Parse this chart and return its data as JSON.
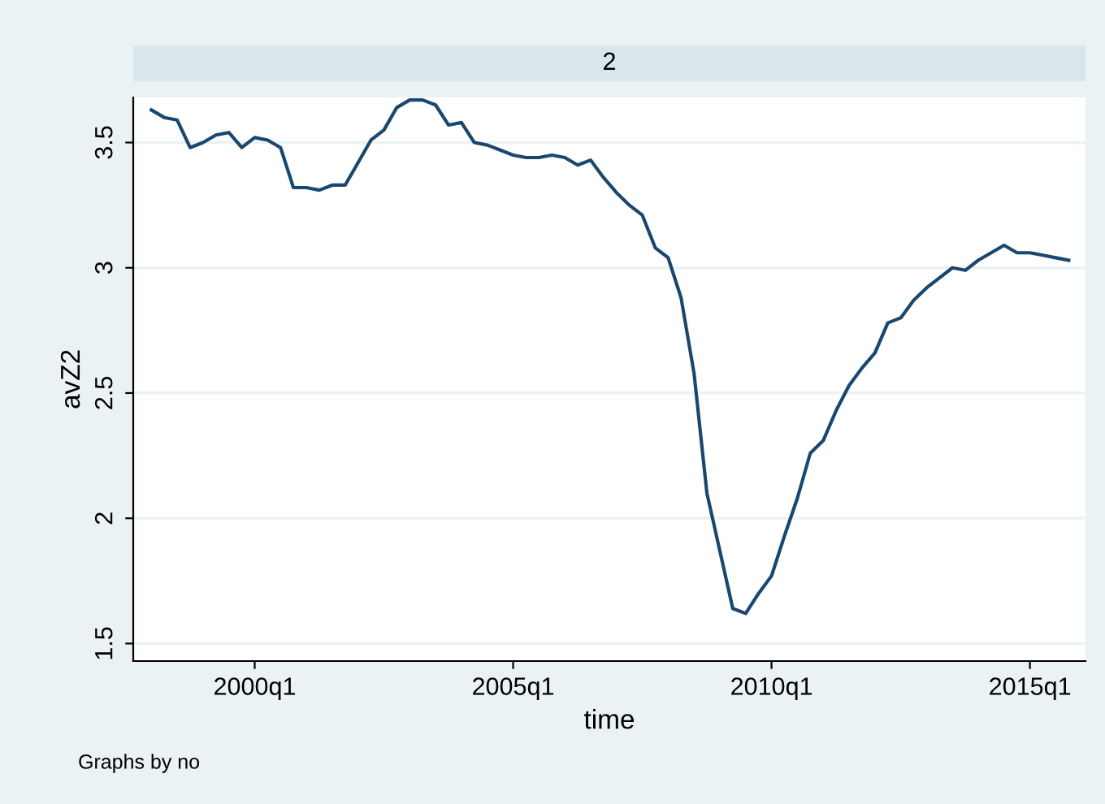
{
  "chart_data": {
    "type": "line",
    "title": "2",
    "xlabel": "time",
    "ylabel": "avZ2",
    "categories": [
      null,
      null,
      null,
      null,
      null,
      null,
      null,
      null,
      "2000q1",
      null,
      null,
      null,
      null,
      null,
      null,
      null,
      null,
      null,
      null,
      null,
      null,
      null,
      null,
      null,
      null,
      null,
      null,
      null,
      "2005q1",
      null,
      null,
      null,
      null,
      null,
      null,
      null,
      null,
      null,
      null,
      null,
      null,
      null,
      null,
      null,
      null,
      null,
      null,
      null,
      "2010q1",
      null,
      null,
      null,
      null,
      null,
      null,
      null,
      null,
      null,
      null,
      null,
      null,
      null,
      null,
      null,
      null,
      null,
      null,
      null,
      "2015q1",
      null,
      null,
      null
    ],
    "series": [
      {
        "color": "#1a476f",
        "values": [
          3.63,
          3.6,
          3.59,
          3.48,
          3.5,
          3.53,
          3.54,
          3.48,
          3.52,
          3.51,
          3.48,
          3.32,
          3.32,
          3.31,
          3.33,
          3.33,
          3.42,
          3.51,
          3.55,
          3.64,
          3.67,
          3.67,
          3.65,
          3.57,
          3.58,
          3.5,
          3.49,
          3.47,
          3.45,
          3.44,
          3.44,
          3.45,
          3.44,
          3.41,
          3.43,
          3.36,
          3.3,
          3.25,
          3.21,
          3.08,
          3.04,
          2.88,
          2.58,
          2.1,
          1.87,
          1.64,
          1.62,
          1.7,
          1.77,
          1.93,
          2.08,
          2.26,
          2.31,
          2.43,
          2.53,
          2.6,
          2.66,
          2.78,
          2.8,
          2.87,
          2.92,
          2.96,
          3.0,
          2.99,
          3.03,
          3.06,
          3.09,
          3.06,
          3.06,
          3.05,
          3.04,
          3.03
        ]
      }
    ],
    "ylim": [
      1.43,
      3.68
    ],
    "yticks": [
      1.5,
      2,
      2.5,
      3,
      3.5
    ],
    "grid": "y",
    "legend": false,
    "marker": "none",
    "line_style": "solid",
    "annotations": [
      "Graphs by no"
    ]
  }
}
